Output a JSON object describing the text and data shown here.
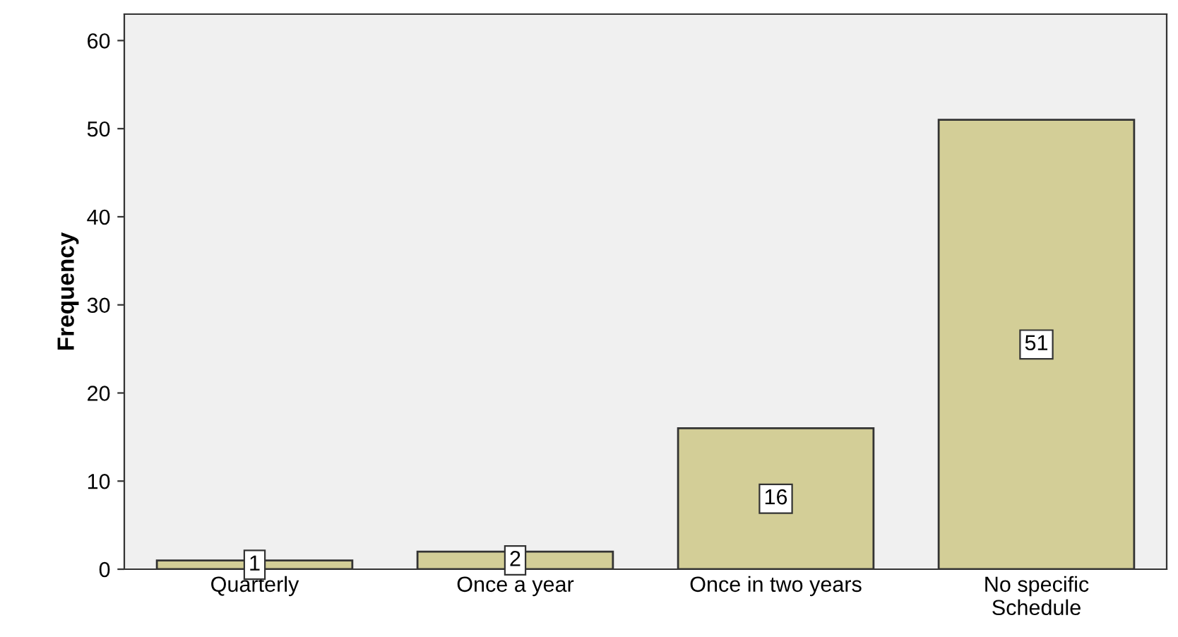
{
  "chart_data": {
    "type": "bar",
    "ylabel": "Frequency",
    "categories": [
      "Quarterly",
      "Once a year",
      "Once in two years",
      "No specific\nSchedule"
    ],
    "values": [
      1,
      2,
      16,
      51
    ],
    "color": "#d3ce97",
    "ylim": [
      0,
      63
    ],
    "yticks": [
      0,
      10,
      20,
      30,
      40,
      50,
      60
    ],
    "grid": false,
    "data_labels": true
  }
}
